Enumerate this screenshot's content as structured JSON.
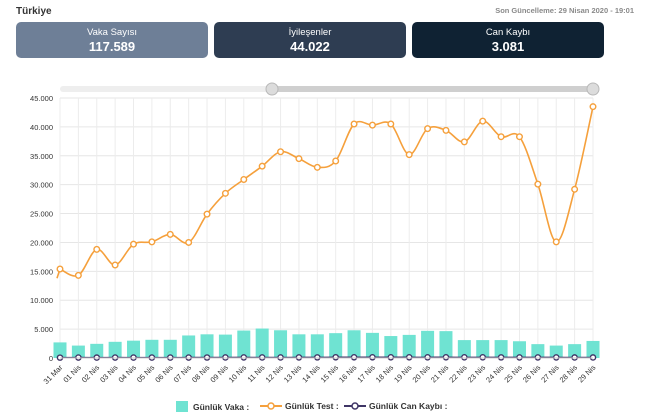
{
  "header": {
    "country": "Türkiye",
    "updated": "Son Güncelleme: 29 Nisan 2020 - 19:01"
  },
  "cards": [
    {
      "label": "Vaka Sayısı",
      "value": "117.589"
    },
    {
      "label": "İyileşenler",
      "value": "44.022"
    },
    {
      "label": "Can Kaybı",
      "value": "3.081"
    }
  ],
  "legend": {
    "cases": "Günlük Vaka :",
    "tests": "Günlük Test :",
    "deaths": "Günlük Can Kaybı :"
  },
  "colors": {
    "cases": "#6fe3d2",
    "tests": "#f5a03c",
    "deaths": "#3f3566"
  },
  "chart_data": {
    "type": "bar+line",
    "categories": [
      "31 Mar",
      "01 Nis",
      "02 Nis",
      "03 Nis",
      "04 Nis",
      "05 Nis",
      "06 Nis",
      "07 Nis",
      "08 Nis",
      "09 Nis",
      "10 Nis",
      "11 Nis",
      "12 Nis",
      "13 Nis",
      "14 Nis",
      "15 Nis",
      "16 Nis",
      "17 Nis",
      "18 Nis",
      "19 Nis",
      "20 Nis",
      "21 Nis",
      "22 Nis",
      "23 Nis",
      "24 Nis",
      "25 Nis",
      "26 Nis",
      "27 Nis",
      "28 Nis",
      "29 Nis"
    ],
    "yticks": [
      "0",
      "5.000",
      "10.000",
      "15.000",
      "20.000",
      "25.000",
      "30.000",
      "35.000",
      "40.000",
      "45.000"
    ],
    "ylim": [
      0,
      45000
    ],
    "grid": true,
    "series": [
      {
        "name": "Günlük Vaka",
        "type": "bar",
        "values": [
          2700,
          2150,
          2450,
          2800,
          3000,
          3150,
          3150,
          3900,
          4100,
          4050,
          4750,
          5100,
          4800,
          4100,
          4100,
          4300,
          4800,
          4350,
          3800,
          4000,
          4700,
          4650,
          3100,
          3100,
          3100,
          2900,
          2400,
          2150,
          2400,
          2950
        ]
      },
      {
        "name": "Günlük Test",
        "type": "line",
        "values": [
          15400,
          14300,
          18800,
          16100,
          19700,
          20100,
          21400,
          20000,
          24900,
          28500,
          30900,
          33200,
          35700,
          34500,
          33000,
          34100,
          40500,
          40300,
          40500,
          35200,
          39700,
          39400,
          37400,
          41000,
          38300,
          38300,
          30100,
          20100,
          29200,
          43500
        ]
      },
      {
        "name": "Günlük Can Kaybı",
        "type": "line",
        "values": [
          63,
          79,
          69,
          76,
          73,
          73,
          75,
          76,
          87,
          96,
          98,
          95,
          97,
          98,
          107,
          127,
          125,
          125,
          121,
          119,
          117,
          123,
          115,
          115,
          109,
          99,
          101,
          99,
          92,
          93
        ]
      }
    ]
  }
}
